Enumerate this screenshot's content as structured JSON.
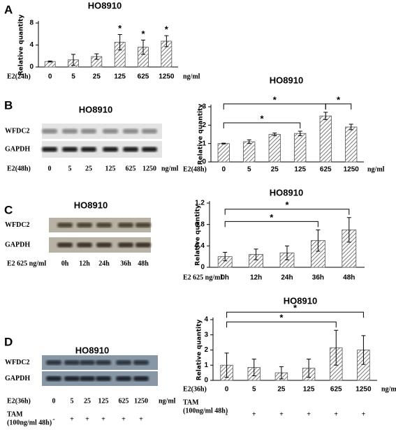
{
  "panel_labels": [
    "A",
    "B",
    "C",
    "D"
  ],
  "blots": [
    {
      "title": "HO8910",
      "row_labels": [
        "WFDC2",
        "GAPDH"
      ],
      "x_prefix": "E2(48h)",
      "lanes": [
        "0",
        "5",
        "25",
        "125",
        "625",
        "1250"
      ],
      "x_unit": "ng/ml"
    },
    {
      "title": "HO8910",
      "row_labels": [
        "WFDC2",
        "GAPDH"
      ],
      "x_prefix": "E2  625  ng/ml",
      "lanes": [
        "0h",
        "12h",
        "24h",
        "36h",
        "48h"
      ]
    },
    {
      "title": "HO8910",
      "row_labels": [
        "WFDC2",
        "GAPDH"
      ],
      "x_prefix": "E2(36h)",
      "lanes": [
        "0",
        "5",
        "25",
        "125",
        "625",
        "1250"
      ],
      "x_unit": "ng/ml",
      "treatment_label": [
        "TAM",
        "(100ng/ml 48h)"
      ],
      "treatment": [
        "-",
        "+",
        "+",
        "+",
        "+",
        "+"
      ]
    }
  ],
  "chart_data": [
    {
      "type": "bar",
      "title": "HO8910",
      "y_label": "Relative quantity",
      "x_prefix": "E2(24h)",
      "x_unit": "ng/ml",
      "categories": [
        "0",
        "5",
        "25",
        "125",
        "625",
        "1250"
      ],
      "values": [
        1.0,
        1.3,
        1.9,
        4.5,
        3.6,
        4.7
      ],
      "errors": [
        0.1,
        1.0,
        0.5,
        1.4,
        1.3,
        1.0
      ],
      "ylim": [
        0,
        8
      ],
      "yticks": [
        0,
        4,
        8
      ],
      "color": "#555555",
      "marked": [
        {
          "category": "125",
          "label": "*"
        },
        {
          "category": "625",
          "label": "*"
        },
        {
          "category": "1250",
          "label": "*"
        }
      ]
    },
    {
      "type": "bar",
      "title": "HO8910",
      "y_label": "Relative quantity",
      "x_prefix": "E2(48h)",
      "x_unit": "ng/ml",
      "categories": [
        "0",
        "5",
        "25",
        "125",
        "625",
        "1250"
      ],
      "values": [
        1.0,
        1.1,
        1.5,
        1.55,
        2.5,
        1.9
      ],
      "errors": [
        0.02,
        0.1,
        0.07,
        0.12,
        0.2,
        0.15
      ],
      "ylim": [
        0,
        3
      ],
      "yticks": [
        0,
        1,
        2,
        3
      ],
      "color": "#555555",
      "significance": [
        {
          "from": "0",
          "to": "125",
          "label": "*"
        },
        {
          "from": "0",
          "to": "625",
          "label": "*"
        },
        {
          "from": "625",
          "to": "1250",
          "label": "*"
        }
      ]
    },
    {
      "type": "bar",
      "title": "HO8910",
      "y_label": "Relative quantity",
      "x_prefix": "E2  625  ng/ml",
      "categories": [
        "0h",
        "12h",
        "24h",
        "36h",
        "48h"
      ],
      "values": [
        0.2,
        0.24,
        0.27,
        0.5,
        0.7
      ],
      "errors": [
        0.08,
        0.1,
        0.13,
        0.2,
        0.23
      ],
      "ylim": [
        0,
        1.2
      ],
      "yticks": [
        0,
        0.4,
        0.8,
        1.2
      ],
      "color": "#555555",
      "significance": [
        {
          "from": "0h",
          "to": "36h",
          "label": "*"
        },
        {
          "from": "0h",
          "to": "48h",
          "label": "*"
        }
      ]
    },
    {
      "type": "bar",
      "title": "HO8910",
      "y_label": "Relative quantity",
      "x_prefix": "E2(36h)",
      "x_unit": "ng/ml",
      "categories": [
        "0",
        "5",
        "25",
        "125",
        "625",
        "1250"
      ],
      "values": [
        1.0,
        0.85,
        0.5,
        0.8,
        2.15,
        2.0
      ],
      "errors": [
        0.8,
        0.55,
        0.4,
        0.6,
        1.15,
        0.95
      ],
      "ylim": [
        0,
        4
      ],
      "yticks": [
        0,
        1,
        2,
        3,
        4
      ],
      "color": "#555555",
      "treatment_label": [
        "TAM",
        "(100ng/ml 48h)"
      ],
      "treatment": [
        "-",
        "+",
        "+",
        "+",
        "+",
        "+"
      ],
      "significance": [
        {
          "from": "0",
          "to": "625",
          "label": "*"
        },
        {
          "from": "0",
          "to": "1250",
          "label": "*"
        }
      ]
    }
  ]
}
